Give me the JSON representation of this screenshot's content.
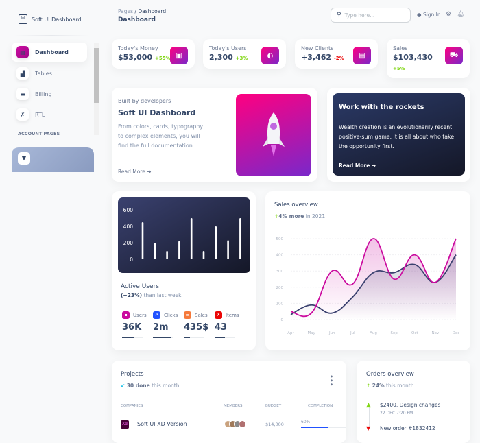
{
  "brand": {
    "name": "Soft UI Dashboard"
  },
  "sidebar": {
    "items": [
      {
        "label": "Dashboard",
        "icon": "shop-icon",
        "active": true
      },
      {
        "label": "Tables",
        "icon": "office-icon"
      },
      {
        "label": "Billing",
        "icon": "credit-card-icon"
      },
      {
        "label": "RTL",
        "icon": "settings-tools-icon"
      }
    ],
    "section": "ACCOUNT PAGES",
    "card_icon": "diamond-icon"
  },
  "header": {
    "breadcrumb_root": "Pages",
    "breadcrumb_sep": "/",
    "breadcrumb_current": "Dashboard",
    "title": "Dashboard",
    "search_placeholder": "Type here...",
    "signin": "Sign In"
  },
  "stats": [
    {
      "label": "Today's Money",
      "value": "$53,000",
      "change": "+55%",
      "trend": "up",
      "icon": "money-icon"
    },
    {
      "label": "Today's Users",
      "value": "2,300",
      "change": "+3%",
      "trend": "up",
      "icon": "globe-icon"
    },
    {
      "label": "New Clients",
      "value": "+3,462",
      "change": "-2%",
      "trend": "down",
      "icon": "document-icon"
    },
    {
      "label": "Sales",
      "value": "$103,430",
      "change": "+5%",
      "trend": "up",
      "icon": "cart-icon"
    }
  ],
  "promo": {
    "kicker": "Built by developers",
    "title": "Soft UI Dashboard",
    "text1": "From colors, cards, typography",
    "text2": "to complex elements, you will",
    "text3": "find the full documentation.",
    "link": "Read More"
  },
  "rockets": {
    "title": "Work with the rockets",
    "text1": "Wealth creation is an evolutionarily recent",
    "text2": "positive-sum game. It is all about who take",
    "text3": "the opportunity first.",
    "link": "Read More"
  },
  "active_users": {
    "title": "Active Users",
    "change": "(+23%)",
    "suffix": "than last week",
    "metrics": [
      {
        "label": "Users",
        "value": "36K",
        "progress": 60,
        "color": "#cb0c9f"
      },
      {
        "label": "Clicks",
        "value": "2m",
        "progress": 90,
        "color": "#17c1e8"
      },
      {
        "label": "Sales",
        "value": "435$",
        "progress": 30,
        "color": "#f53939"
      },
      {
        "label": "Items",
        "value": "43",
        "progress": 50,
        "color": "#ea0606"
      }
    ]
  },
  "chart_data": [
    {
      "type": "bar",
      "yticks": [
        "600",
        "400",
        "200",
        "0"
      ],
      "ylim": [
        0,
        600
      ],
      "values": [
        450,
        200,
        100,
        220,
        500,
        100,
        400,
        230,
        500
      ]
    },
    {
      "type": "area",
      "title": "Sales overview",
      "subtitle_bold": "4% more",
      "subtitle_rest": "in 2021",
      "categories": [
        "Apr",
        "May",
        "Jun",
        "Jul",
        "Aug",
        "Sep",
        "Oct",
        "Nov",
        "Dec"
      ],
      "yticks": [
        "500",
        "400",
        "300",
        "200",
        "100",
        "0"
      ],
      "ylim": [
        0,
        500
      ],
      "grid": true,
      "series": [
        {
          "values": [
            50,
            40,
            300,
            220,
            500,
            250,
            400,
            230,
            500
          ],
          "color": "#cb0c9f"
        },
        {
          "values": [
            30,
            90,
            40,
            140,
            290,
            290,
            340,
            230,
            400
          ],
          "color": "#3a416f"
        }
      ]
    }
  ],
  "projects": {
    "title": "Projects",
    "done_bold": "30 done",
    "done_rest": "this month",
    "columns": [
      "COMPANIES",
      "MEMBERS",
      "BUDGET",
      "COMPLETION"
    ],
    "rows": [
      {
        "company": "Soft UI XD Version",
        "logo": "Xd",
        "budget": "$14,000",
        "completion": "60%",
        "progress": 60
      }
    ]
  },
  "orders": {
    "title": "Orders overview",
    "change_bold": "24%",
    "change_rest": "this month",
    "items": [
      {
        "title": "$2400, Design changes",
        "date": "22 DEC 7:20 PM",
        "icon": "bell-icon"
      },
      {
        "title": "New order #1832412",
        "icon": "html5-icon"
      }
    ]
  }
}
